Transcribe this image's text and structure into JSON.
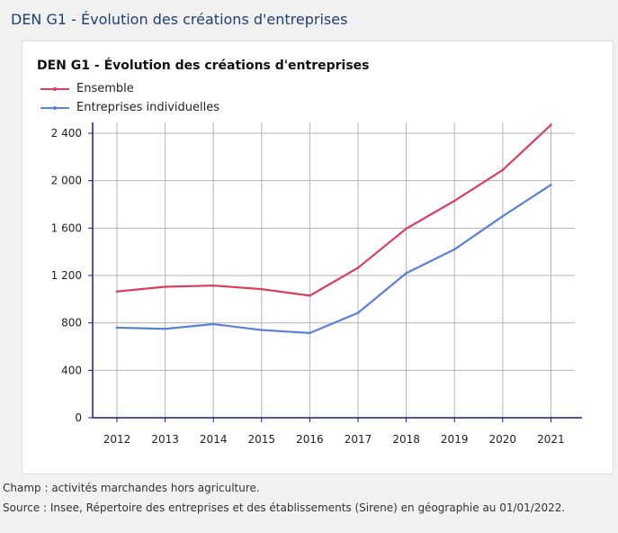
{
  "page": {
    "title": "DEN G1 - Évolution des créations d'entreprises"
  },
  "footnotes": {
    "champ": "Champ : activités marchandes hors agriculture.",
    "source": "Source : Insee, Répertoire des entreprises et des établissements (Sirene) en géographie au 01/01/2022."
  },
  "colors": {
    "ensemble": "#d8405e",
    "individuelles": "#5b7fdb",
    "axis": "#1a1a8c",
    "grid": "#b5b5b5",
    "title": "#1f3f78"
  },
  "chart_data": {
    "type": "line",
    "title": "DEN G1 - Évolution des créations d'entreprises",
    "xlabel": "",
    "ylabel": "",
    "categories": [
      "2012",
      "2013",
      "2014",
      "2015",
      "2016",
      "2017",
      "2018",
      "2019",
      "2020",
      "2021"
    ],
    "ylim": [
      0,
      2400
    ],
    "yticks": [
      0,
      400,
      800,
      1200,
      1600,
      2000,
      2400
    ],
    "ytick_labels": [
      "0",
      "400",
      "800",
      "1 200",
      "1 600",
      "2 000",
      "2 400"
    ],
    "grid": true,
    "legend_position": "top-left",
    "series": [
      {
        "name": "Ensemble",
        "color": "#d8405e",
        "values": [
          1065,
          1105,
          1115,
          1085,
          1030,
          1265,
          1595,
          1830,
          2090,
          2470
        ]
      },
      {
        "name": "Entreprises individuelles",
        "color": "#5b7fdb",
        "values": [
          760,
          750,
          790,
          740,
          715,
          885,
          1220,
          1420,
          1700,
          1965
        ]
      }
    ]
  }
}
